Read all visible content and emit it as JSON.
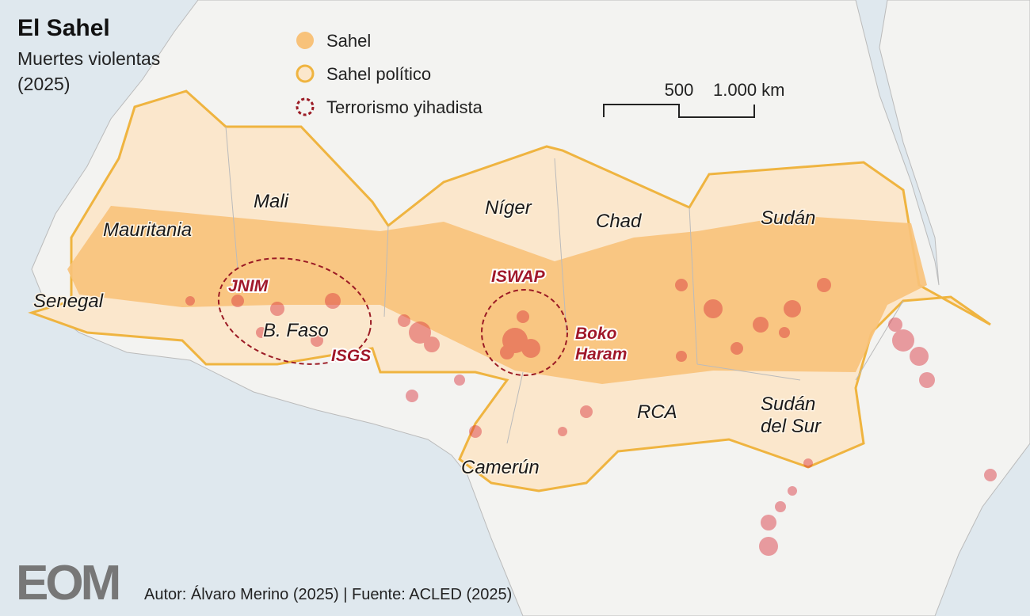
{
  "header": {
    "title": "El Sahel",
    "subtitle": [
      "Muertes violentas",
      "(2025)"
    ]
  },
  "legend": {
    "items": [
      "Sahel",
      "Sahel político",
      "Terrorismo yihadista"
    ]
  },
  "scale": {
    "labels": [
      "500",
      "1.000 km"
    ]
  },
  "countries": [
    {
      "label": [
        "Mauritania"
      ]
    },
    {
      "label": [
        "Mali"
      ]
    },
    {
      "label": [
        "Níger"
      ]
    },
    {
      "label": [
        "Chad"
      ]
    },
    {
      "label": [
        "Sudán"
      ]
    },
    {
      "label": [
        "Senegal"
      ]
    },
    {
      "label": [
        "B. Faso"
      ]
    },
    {
      "label": [
        "RCA"
      ]
    },
    {
      "label": [
        "Sudán",
        "del Sur"
      ]
    },
    {
      "label": [
        "Camerún"
      ]
    }
  ],
  "groups": [
    {
      "label": [
        "JNIM"
      ]
    },
    {
      "label": [
        "ISGS"
      ]
    },
    {
      "label": [
        "ISWAP"
      ]
    },
    {
      "label": [
        "Boko",
        "Haram"
      ]
    }
  ],
  "footer": {
    "logo": "EOM",
    "credits": "Autor: Álvaro Merino (2025) | Fuente: ACLED (2025)"
  }
}
